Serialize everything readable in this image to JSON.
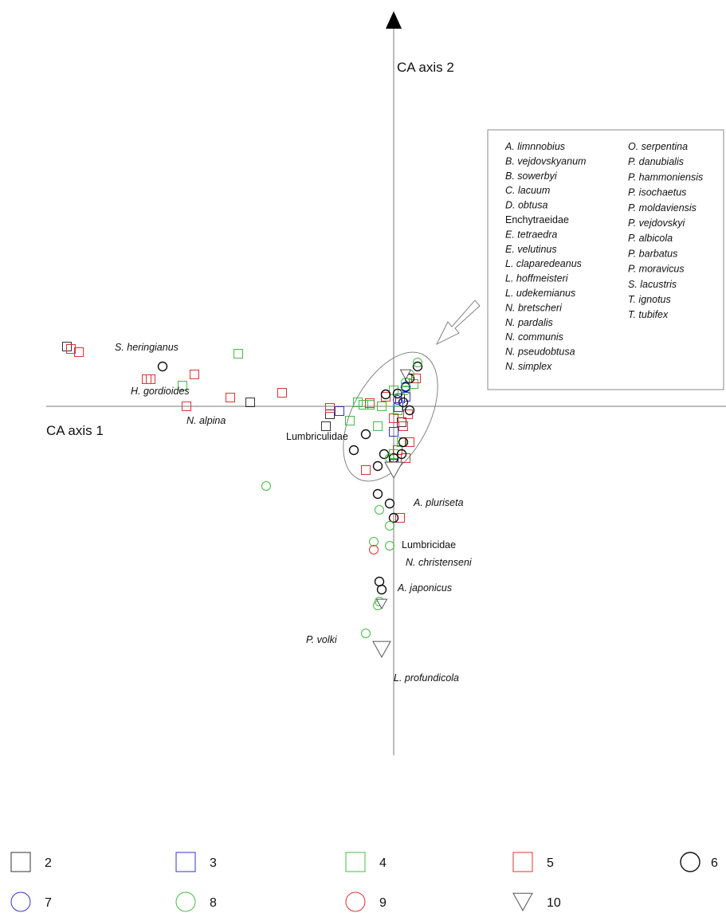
{
  "chart_data": {
    "type": "scatter",
    "title": "",
    "xlabel": "CA axis  1",
    "ylabel": "CA axis  2",
    "xlim": [
      -4.4,
      4.2
    ],
    "ylim": [
      -4.3,
      4.6
    ],
    "grid": false,
    "legend_placement": "bottom",
    "symbol_legend": [
      {
        "key": "2",
        "marker": "square",
        "color": "#333333"
      },
      {
        "key": "3",
        "marker": "square",
        "color": "#3333cc"
      },
      {
        "key": "4",
        "marker": "square",
        "color": "#44bb44"
      },
      {
        "key": "5",
        "marker": "square",
        "color": "#dd3333"
      },
      {
        "key": "6",
        "marker": "circle",
        "color": "#111111"
      },
      {
        "key": "7",
        "marker": "circle",
        "color": "#3333cc"
      },
      {
        "key": "8",
        "marker": "circle",
        "color": "#44bb44"
      },
      {
        "key": "9",
        "marker": "circle",
        "color": "#dd3333"
      },
      {
        "key": "10",
        "marker": "triangle",
        "color": "#555555"
      }
    ],
    "series": [
      {
        "key": "2",
        "points": [
          [
            -4.1,
            0.75
          ],
          [
            -1.8,
            0.05
          ],
          [
            -0.85,
            -0.25
          ],
          [
            -0.8,
            -0.1
          ],
          [
            0.1,
            -0.2
          ],
          [
            0.08,
            0.1
          ]
        ]
      },
      {
        "key": "3",
        "points": [
          [
            -0.68,
            -0.06
          ],
          [
            0.0,
            -0.32
          ],
          [
            0.06,
            -0.01
          ],
          [
            0.0,
            -0.72
          ],
          [
            0.15,
            0.12
          ]
        ]
      },
      {
        "key": "4",
        "points": [
          [
            -1.95,
            0.66
          ],
          [
            -2.65,
            0.26
          ],
          [
            -0.45,
            0.05
          ],
          [
            -0.55,
            -0.18
          ],
          [
            -0.2,
            -0.25
          ],
          [
            0.0,
            0.2
          ],
          [
            0.25,
            0.28
          ],
          [
            -0.3,
            0.02
          ],
          [
            -0.15,
            0.0
          ],
          [
            0.05,
            -0.05
          ],
          [
            0.1,
            -0.45
          ],
          [
            0.0,
            -0.6
          ],
          [
            -0.38,
            0.02
          ]
        ]
      },
      {
        "key": "5",
        "points": [
          [
            -4.05,
            0.72
          ],
          [
            -3.95,
            0.68
          ],
          [
            -3.1,
            0.34
          ],
          [
            -3.05,
            0.34
          ],
          [
            -2.5,
            0.4
          ],
          [
            -2.6,
            0.0
          ],
          [
            -2.05,
            0.11
          ],
          [
            -1.4,
            0.17
          ],
          [
            -0.8,
            -0.02
          ],
          [
            -0.3,
            0.04
          ],
          [
            -0.1,
            0.12
          ],
          [
            0.0,
            -0.15
          ],
          [
            0.12,
            -0.25
          ],
          [
            0.05,
            -0.55
          ],
          [
            -0.35,
            -0.8
          ],
          [
            0.15,
            -0.65
          ],
          [
            0.2,
            -0.45
          ],
          [
            0.28,
            0.35
          ],
          [
            0.18,
            -0.1
          ],
          [
            0.08,
            -1.4
          ]
        ]
      },
      {
        "key": "6",
        "points": [
          [
            -2.9,
            0.5
          ],
          [
            -0.35,
            -0.35
          ],
          [
            -0.1,
            0.15
          ],
          [
            0.05,
            0.16
          ],
          [
            0.15,
            0.24
          ],
          [
            0.3,
            0.5
          ],
          [
            0.2,
            0.35
          ],
          [
            0.12,
            0.05
          ],
          [
            0.2,
            -0.05
          ],
          [
            0.12,
            -0.45
          ],
          [
            0.1,
            -0.6
          ],
          [
            0.0,
            -0.65
          ],
          [
            -0.12,
            -0.6
          ],
          [
            -0.2,
            -0.75
          ],
          [
            -0.5,
            -0.55
          ],
          [
            -0.2,
            -1.1
          ],
          [
            -0.05,
            -1.22
          ],
          [
            0.0,
            -1.4
          ],
          [
            -0.18,
            -2.2
          ],
          [
            -0.15,
            -2.3
          ]
        ]
      },
      {
        "key": "7",
        "points": [
          [
            0.15,
            0.25
          ],
          [
            0.05,
            0.08
          ]
        ]
      },
      {
        "key": "8",
        "points": [
          [
            -1.6,
            -1.0
          ],
          [
            -0.18,
            -1.3
          ],
          [
            -0.05,
            -1.5
          ],
          [
            -0.05,
            -1.75
          ],
          [
            -0.25,
            -1.7
          ],
          [
            -0.18,
            -2.45
          ],
          [
            -0.2,
            -2.5
          ],
          [
            -0.35,
            -2.85
          ],
          [
            0.3,
            0.55
          ],
          [
            0.2,
            0.4
          ],
          [
            0.15,
            0.2
          ],
          [
            -0.05,
            -0.65
          ],
          [
            0.15,
            0.3
          ]
        ]
      },
      {
        "key": "9",
        "points": [
          [
            -0.25,
            -1.8
          ]
        ]
      },
      {
        "key": "10",
        "points": [
          [
            0.0,
            -0.8
          ],
          [
            0.15,
            0.4
          ],
          [
            -0.15,
            -2.48
          ],
          [
            -0.15,
            -3.05
          ]
        ]
      }
    ],
    "annotations": [
      {
        "text": "S. heringianus",
        "x": -3.5,
        "y": 0.7
      },
      {
        "text": "H. gordioides",
        "x": -3.3,
        "y": 0.15
      },
      {
        "text": "N. alpina",
        "x": -2.6,
        "y": -0.22
      },
      {
        "text": "Lumbriculidae",
        "x": -1.35,
        "y": -0.42
      },
      {
        "text": "A. pluriseta",
        "x": 0.25,
        "y": -1.25
      },
      {
        "text": "Lumbricidae",
        "x": 0.1,
        "y": -1.78
      },
      {
        "text": "N. christenseni",
        "x": 0.15,
        "y": -2.0
      },
      {
        "text": "A. japonicus",
        "x": 0.05,
        "y": -2.32
      },
      {
        "text": "P. volki",
        "x": -1.1,
        "y": -2.97
      },
      {
        "text": "L. profundicola",
        "x": 0.0,
        "y": -3.45
      }
    ],
    "species_legend": {
      "column1": [
        "A. limnnobius",
        "B. vejdovskyanum",
        "B. sowerbyi",
        "C. lacuum",
        "D. obtusa",
        "Enchytraeidae",
        "E. tetraedra",
        "E. velutinus",
        "L. claparedeanus",
        "L. hoffmeisteri",
        "L. udekemianus",
        "N. bretscheri",
        "N. pardalis",
        "N. communis",
        "N. pseudobtusa",
        "N. simplex"
      ],
      "column2": [
        "O. serpentina",
        "P. danubialis",
        "P. hammoniensis",
        "P. isochaetus",
        "P. moldaviensis",
        "P. vejdovskyi",
        "P. albicola",
        "P. barbatus",
        "P. moravicus",
        "S. lacustris",
        "T. ignotus",
        "T. tubifex"
      ]
    }
  }
}
